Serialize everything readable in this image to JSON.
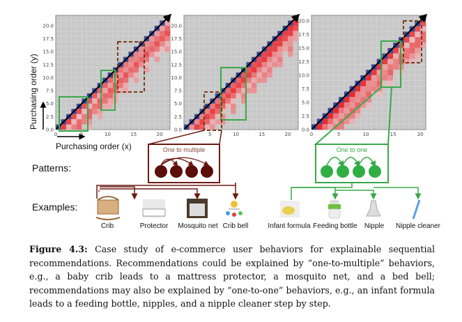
{
  "chart_data": [
    {
      "type": "heatmap",
      "panel": "left",
      "xlabel": "Purchasing order (x)",
      "ylabel": "Purchasing order (y)",
      "xlim": [
        0,
        22
      ],
      "ylim": [
        0,
        22
      ],
      "xticks": [
        "0",
        "5",
        "10",
        "15",
        "20"
      ],
      "yticks": [
        "0.0",
        "2.5",
        "5.0",
        "7.5",
        "10.0",
        "12.5",
        "15.0",
        "17.5",
        "20.0"
      ],
      "seed": 1
    },
    {
      "type": "heatmap",
      "panel": "middle",
      "xlim": [
        0,
        22
      ],
      "ylim": [
        0,
        22
      ],
      "xticks": [
        "5",
        "10",
        "15",
        "20"
      ],
      "yticks": [
        "0.0",
        "2.5",
        "5.0",
        "7.5",
        "10.0",
        "12.5",
        "15.0",
        "17.5",
        "20.0"
      ],
      "seed": 2
    },
    {
      "type": "heatmap",
      "panel": "right",
      "xlim": [
        0,
        21
      ],
      "ylim": [
        0,
        21
      ],
      "xticks": [
        "0",
        "5",
        "10",
        "15",
        "20"
      ],
      "yticks": [
        "0.0",
        "2.5",
        "5.0",
        "7.5",
        "10.0",
        "12.5",
        "15.0",
        "17.5",
        "20.0"
      ],
      "seed": 3
    }
  ],
  "axes": {
    "xlabel": "Purchasing order (x)",
    "ylabel": "Purchasing order (y)"
  },
  "patterns": {
    "label": "Patterns:",
    "one_to_multiple": "One to multiple",
    "one_to_one": "One to one"
  },
  "examples": {
    "label": "Examples:",
    "items": [
      "Crib",
      "Protector",
      "Mosquito net",
      "Crib bell",
      "Infant formula",
      "Feeding bottle",
      "Nipple",
      "Nipple cleaner"
    ]
  },
  "colors": {
    "brown": "#6b1a12",
    "green": "#3aa84a",
    "red": "#e8202a",
    "blue": "#3a4a9a",
    "grid": "#c8c8c8"
  },
  "caption": {
    "label": "Figure 4.3:",
    "text": " Case study of e-commerce user behaviors for explainable sequential recommendations. Recommendations could be explained by “one-to-multiple” behaviors, e.g., a baby crib leads to a mattress protector, a mosquito net, and a bed bell; recommendations may also be explained by “one-to-one” behaviors, e.g., an infant formula leads to a feeding bottle, nipples, and a nipple cleaner step by step."
  }
}
